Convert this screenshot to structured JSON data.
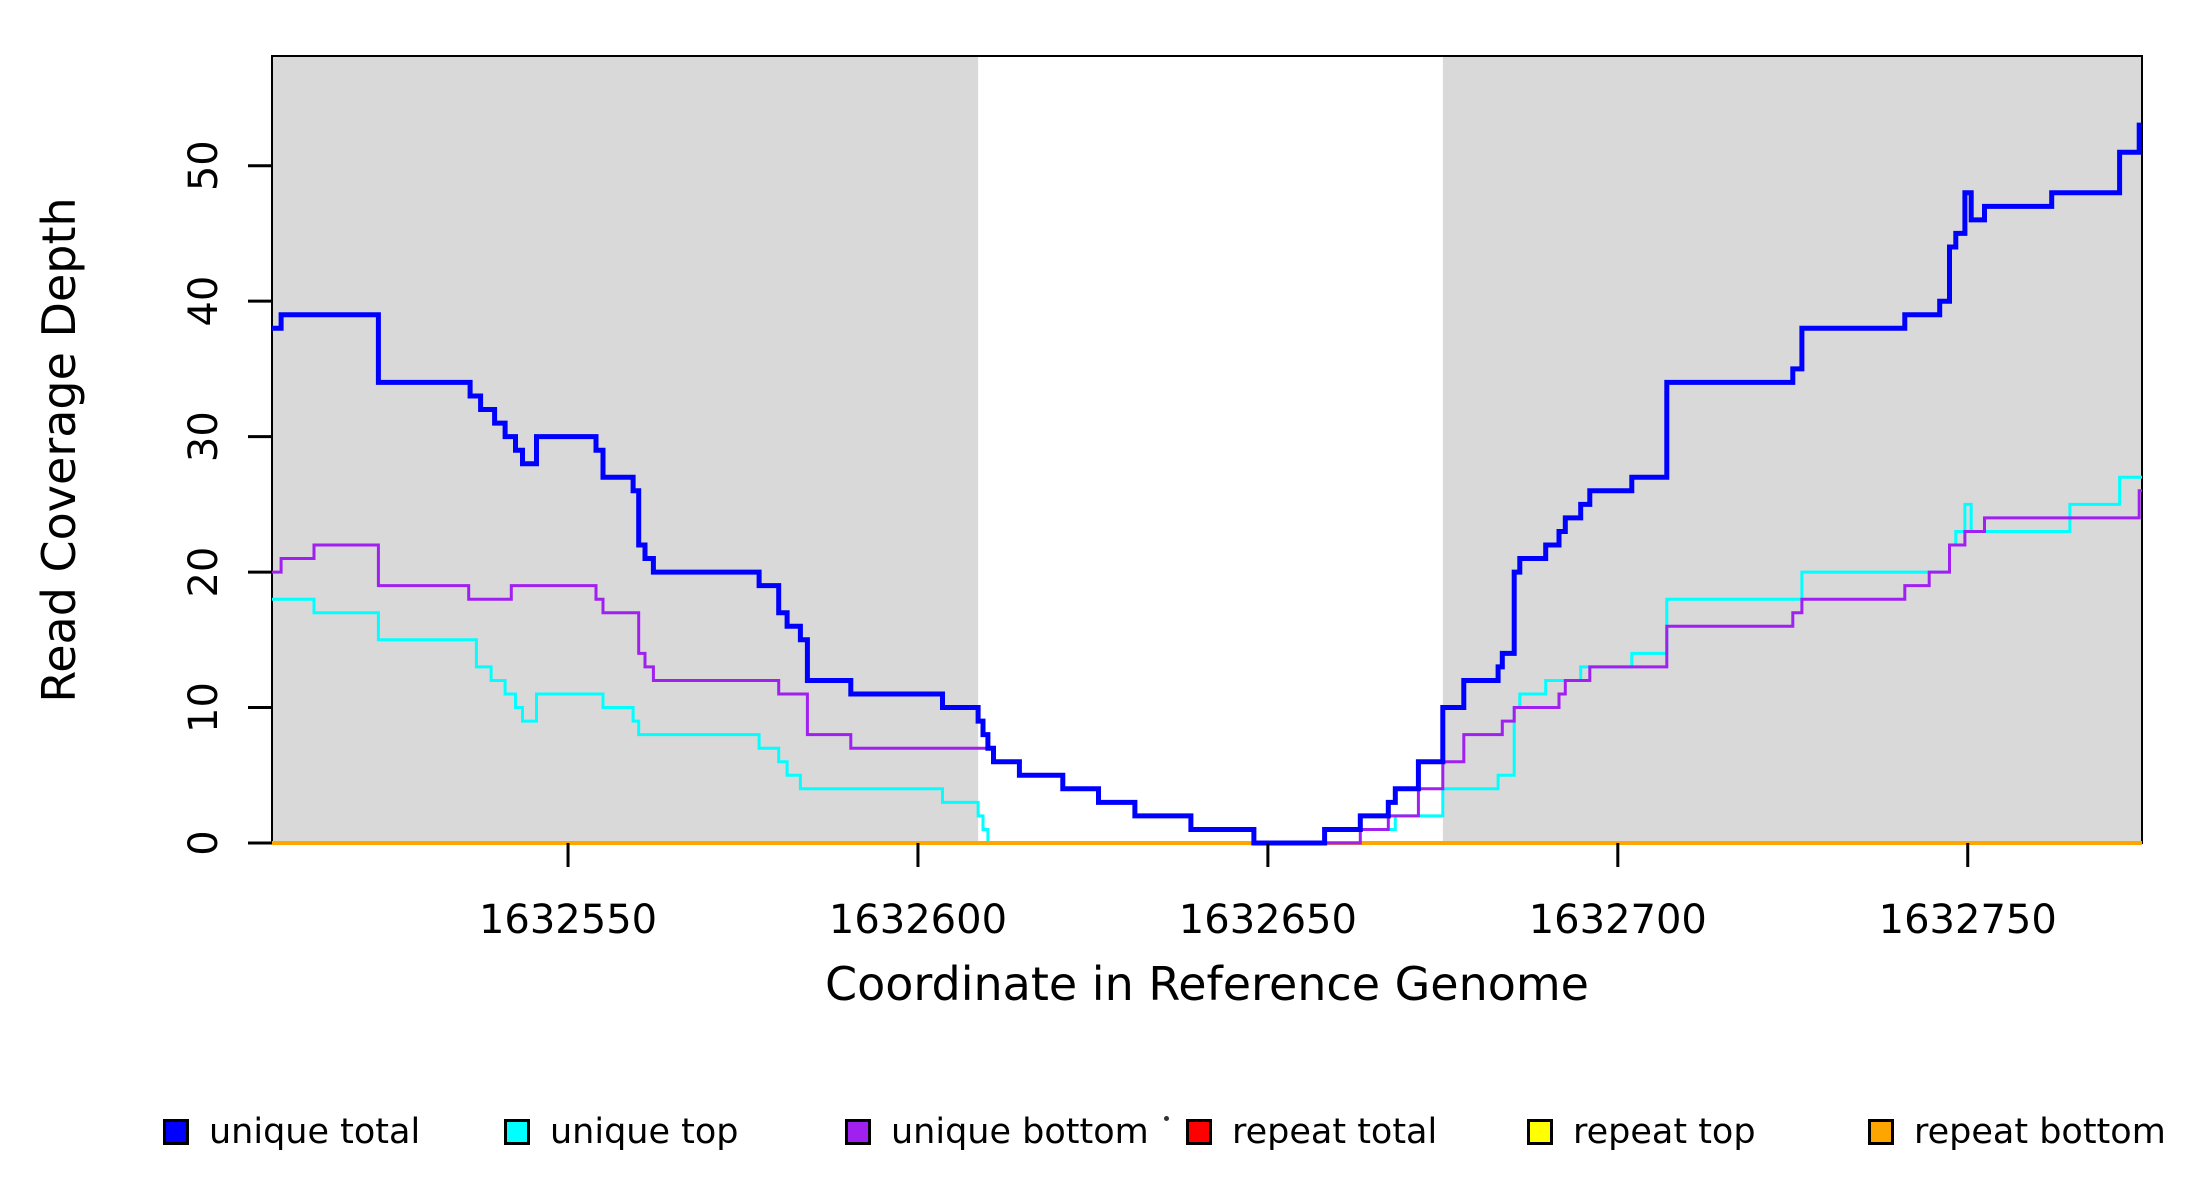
{
  "chart_data": {
    "type": "line",
    "subtype": "step-coverage",
    "title": "",
    "xlabel": "Coordinate in Reference Genome",
    "ylabel": "Read Coverage Depth",
    "xlim": [
      1632507.7,
      1632774.9
    ],
    "ylim": [
      0,
      58.1
    ],
    "x_ticks": [
      1632550,
      1632600,
      1632650,
      1632700,
      1632750
    ],
    "x_tick_labels": [
      "1632550",
      "1632600",
      "1632650",
      "1632700",
      "1632750"
    ],
    "y_ticks": [
      0,
      10,
      20,
      30,
      40,
      50
    ],
    "y_tick_labels": [
      "0",
      "10",
      "20",
      "30",
      "40",
      "50"
    ],
    "grid": false,
    "legend_position": "bottom",
    "plot_background": "#ffffff",
    "box_color": "#000000",
    "shaded_regions": [
      {
        "name": "left-gray-region",
        "x0": 1632507.7,
        "x1": 1632608.6,
        "color": "#d9d9d9"
      },
      {
        "name": "right-gray-region",
        "x0": 1632675.0,
        "x1": 1632774.9,
        "color": "#d9d9d9"
      }
    ],
    "draw_order": [
      "unique top",
      "repeat total",
      "repeat top",
      "repeat bottom",
      "unique bottom",
      "unique total"
    ],
    "series": [
      {
        "name": "unique total",
        "color": "#0000ff",
        "line_width": 5,
        "steps": [
          [
            1632507.7,
            38
          ],
          [
            1632509,
            39
          ],
          [
            1632522.9,
            34
          ],
          [
            1632536,
            33
          ],
          [
            1632537.5,
            32
          ],
          [
            1632539.5,
            31
          ],
          [
            1632541,
            30
          ],
          [
            1632542.5,
            29
          ],
          [
            1632543.5,
            28
          ],
          [
            1632545.5,
            30
          ],
          [
            1632554,
            29
          ],
          [
            1632555,
            27
          ],
          [
            1632559.3,
            26
          ],
          [
            1632560.1,
            22
          ],
          [
            1632561,
            21
          ],
          [
            1632562.2,
            20
          ],
          [
            1632577.3,
            19
          ],
          [
            1632580.1,
            17
          ],
          [
            1632581.3,
            16
          ],
          [
            1632583.2,
            15
          ],
          [
            1632584.2,
            12
          ],
          [
            1632590.4,
            11
          ],
          [
            1632603.5,
            10
          ],
          [
            1632608.6,
            9
          ],
          [
            1632609.3,
            8
          ],
          [
            1632610,
            7
          ],
          [
            1632610.8,
            6
          ],
          [
            1632614.5,
            5
          ],
          [
            1632620.7,
            4
          ],
          [
            1632625.8,
            3
          ],
          [
            1632631,
            2
          ],
          [
            1632639,
            1
          ],
          [
            1632648,
            0
          ],
          [
            1632658.1,
            1
          ],
          [
            1632663.2,
            2
          ],
          [
            1632667.2,
            3
          ],
          [
            1632668.2,
            4
          ],
          [
            1632671.5,
            6
          ],
          [
            1632675,
            10
          ],
          [
            1632678,
            12
          ],
          [
            1632682.9,
            13
          ],
          [
            1632683.5,
            14
          ],
          [
            1632685.2,
            20
          ],
          [
            1632686,
            21
          ],
          [
            1632689.7,
            22
          ],
          [
            1632691.6,
            23
          ],
          [
            1632692.5,
            24
          ],
          [
            1632694.7,
            25
          ],
          [
            1632696,
            26
          ],
          [
            1632702,
            27
          ],
          [
            1632707,
            34
          ],
          [
            1632725,
            35
          ],
          [
            1632726.3,
            38
          ],
          [
            1632741,
            39
          ],
          [
            1632746,
            40
          ],
          [
            1632747.4,
            44
          ],
          [
            1632748.3,
            45
          ],
          [
            1632749.6,
            48
          ],
          [
            1632750.5,
            46
          ],
          [
            1632752.4,
            47
          ],
          [
            1632762,
            48
          ],
          [
            1632771.7,
            51
          ],
          [
            1632774.5,
            53
          ]
        ]
      },
      {
        "name": "unique top",
        "color": "#00ffff",
        "line_width": 3,
        "steps": [
          [
            1632507.7,
            18
          ],
          [
            1632513.7,
            17
          ],
          [
            1632522.9,
            15
          ],
          [
            1632536.9,
            13
          ],
          [
            1632539,
            12
          ],
          [
            1632541,
            11
          ],
          [
            1632542.5,
            10
          ],
          [
            1632543.5,
            9
          ],
          [
            1632545.5,
            11
          ],
          [
            1632555,
            10
          ],
          [
            1632559.3,
            9
          ],
          [
            1632560.1,
            8
          ],
          [
            1632577.3,
            7
          ],
          [
            1632580.1,
            6
          ],
          [
            1632581.3,
            5
          ],
          [
            1632583.2,
            4
          ],
          [
            1632603.5,
            3
          ],
          [
            1632608.6,
            2
          ],
          [
            1632609.3,
            1
          ],
          [
            1632610,
            0
          ],
          [
            1632658.1,
            1
          ],
          [
            1632668.2,
            2
          ],
          [
            1632675,
            4
          ],
          [
            1632682.9,
            5
          ],
          [
            1632685.2,
            10
          ],
          [
            1632686,
            11
          ],
          [
            1632689.7,
            12
          ],
          [
            1632694.7,
            13
          ],
          [
            1632702,
            14
          ],
          [
            1632707,
            18
          ],
          [
            1632726.3,
            20
          ],
          [
            1632747.4,
            22
          ],
          [
            1632748.3,
            23
          ],
          [
            1632749.6,
            25
          ],
          [
            1632750.5,
            23
          ],
          [
            1632764.6,
            25
          ],
          [
            1632771.7,
            27
          ]
        ]
      },
      {
        "name": "unique bottom",
        "color": "#a020f0",
        "line_width": 3,
        "steps": [
          [
            1632507.7,
            20
          ],
          [
            1632509,
            21
          ],
          [
            1632513.7,
            22
          ],
          [
            1632522.9,
            19
          ],
          [
            1632535.8,
            18
          ],
          [
            1632541.9,
            19
          ],
          [
            1632554,
            18
          ],
          [
            1632555,
            17
          ],
          [
            1632560.1,
            14
          ],
          [
            1632561,
            13
          ],
          [
            1632562.2,
            12
          ],
          [
            1632580.1,
            11
          ],
          [
            1632584.2,
            8
          ],
          [
            1632590.4,
            7
          ],
          [
            1632610.8,
            6
          ],
          [
            1632614.5,
            5
          ],
          [
            1632620.7,
            4
          ],
          [
            1632625.8,
            3
          ],
          [
            1632631,
            2
          ],
          [
            1632639,
            1
          ],
          [
            1632648,
            0
          ],
          [
            1632663.2,
            1
          ],
          [
            1632667.2,
            2
          ],
          [
            1632671.5,
            4
          ],
          [
            1632675,
            6
          ],
          [
            1632678,
            8
          ],
          [
            1632683.5,
            9
          ],
          [
            1632685.2,
            10
          ],
          [
            1632691.6,
            11
          ],
          [
            1632692.5,
            12
          ],
          [
            1632696,
            13
          ],
          [
            1632707,
            16
          ],
          [
            1632725,
            17
          ],
          [
            1632726.3,
            18
          ],
          [
            1632741,
            19
          ],
          [
            1632744.5,
            20
          ],
          [
            1632747.4,
            22
          ],
          [
            1632749.6,
            23
          ],
          [
            1632752.4,
            24
          ],
          [
            1632774.5,
            26
          ]
        ]
      },
      {
        "name": "repeat total",
        "color": "#ff0000",
        "line_width": 3,
        "steps": [
          [
            1632507.7,
            0
          ]
        ]
      },
      {
        "name": "repeat top",
        "color": "#ffff00",
        "line_width": 3,
        "steps": [
          [
            1632507.7,
            0
          ]
        ]
      },
      {
        "name": "repeat bottom",
        "color": "#ffa500",
        "line_width": 4,
        "steps": [
          [
            1632507.7,
            0
          ]
        ]
      }
    ],
    "legend": [
      {
        "label": "unique total",
        "color": "#0000ff"
      },
      {
        "label": "unique top",
        "color": "#00ffff"
      },
      {
        "label": "unique bottom",
        "color": "#a020f0"
      },
      {
        "label": "repeat total",
        "color": "#ff0000"
      },
      {
        "label": "repeat top",
        "color": "#ffff00"
      },
      {
        "label": "repeat bottom",
        "color": "#ffa500"
      }
    ]
  }
}
